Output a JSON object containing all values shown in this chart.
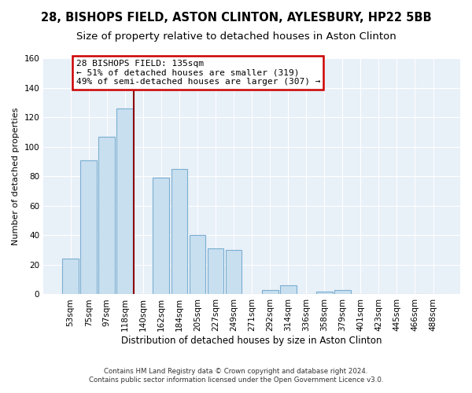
{
  "title": "28, BISHOPS FIELD, ASTON CLINTON, AYLESBURY, HP22 5BB",
  "subtitle": "Size of property relative to detached houses in Aston Clinton",
  "xlabel": "Distribution of detached houses by size in Aston Clinton",
  "ylabel": "Number of detached properties",
  "bar_labels": [
    "53sqm",
    "75sqm",
    "97sqm",
    "118sqm",
    "140sqm",
    "162sqm",
    "184sqm",
    "205sqm",
    "227sqm",
    "249sqm",
    "271sqm",
    "292sqm",
    "314sqm",
    "336sqm",
    "358sqm",
    "379sqm",
    "401sqm",
    "423sqm",
    "445sqm",
    "466sqm",
    "488sqm"
  ],
  "bar_values": [
    24,
    91,
    107,
    126,
    0,
    79,
    85,
    40,
    31,
    30,
    0,
    3,
    6,
    0,
    2,
    3,
    0,
    0,
    0,
    0,
    0
  ],
  "bar_color": "#c8dff0",
  "bar_edge_color": "#7aaed0",
  "vline_color": "#8b0000",
  "annotation_title": "28 BISHOPS FIELD: 135sqm",
  "annotation_line1": "← 51% of detached houses are smaller (319)",
  "annotation_line2": "49% of semi-detached houses are larger (307) →",
  "annotation_box_color": "#ffffff",
  "annotation_box_edge": "#cc0000",
  "ylim": [
    0,
    160
  ],
  "yticks": [
    0,
    20,
    40,
    60,
    80,
    100,
    120,
    140,
    160
  ],
  "footnote1": "Contains HM Land Registry data © Crown copyright and database right 2024.",
  "footnote2": "Contains public sector information licensed under the Open Government Licence v3.0.",
  "bg_color": "#ffffff",
  "plot_bg_color": "#e8f0f8",
  "grid_color": "#ffffff",
  "title_fontsize": 10.5,
  "subtitle_fontsize": 9.5,
  "ylabel_fontsize": 8,
  "xlabel_fontsize": 8.5,
  "tick_fontsize": 7.5,
  "ann_fontsize": 8
}
